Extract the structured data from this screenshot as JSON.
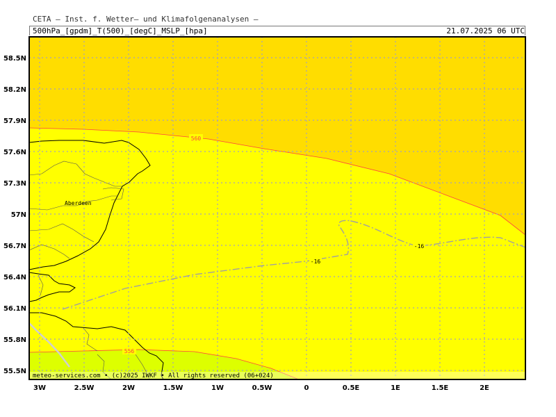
{
  "header": {
    "title": "CETA – Inst. f. Wetter– und Klimafolgenanalysen –",
    "left_label": "500hPa_[gpdm]_T(500)_[degC]_MSLP_[hpa]",
    "valid_time": "21.07.2025 06 UTC"
  },
  "map": {
    "lat_ticks": [
      "58.5N",
      "58.2N",
      "57.9N",
      "57.6N",
      "57.3N",
      "57N",
      "56.7N",
      "56.4N",
      "56.1N",
      "55.8N",
      "55.5N"
    ],
    "lon_ticks": [
      "3W",
      "2.5W",
      "2W",
      "1.5W",
      "1W",
      "0.5W",
      "0",
      "0.5E",
      "1E",
      "1.5E",
      "2E"
    ],
    "place_label": "Aberdeen",
    "geopotential_labels": [
      "560",
      "556"
    ],
    "temperature_labels": [
      "-16",
      "-16"
    ],
    "colors": {
      "geo_above_560": "#ffdd00",
      "geo_556_560": "#ffff00",
      "geo_below_556": "#ddff00",
      "grid": "#a0a0c0",
      "geo_contour": "#ff4040",
      "temp_contour": "#a0a0a0"
    },
    "footer": "meteo-services.com • (c)2025 IWKF • All rights reserved (06+024)"
  }
}
